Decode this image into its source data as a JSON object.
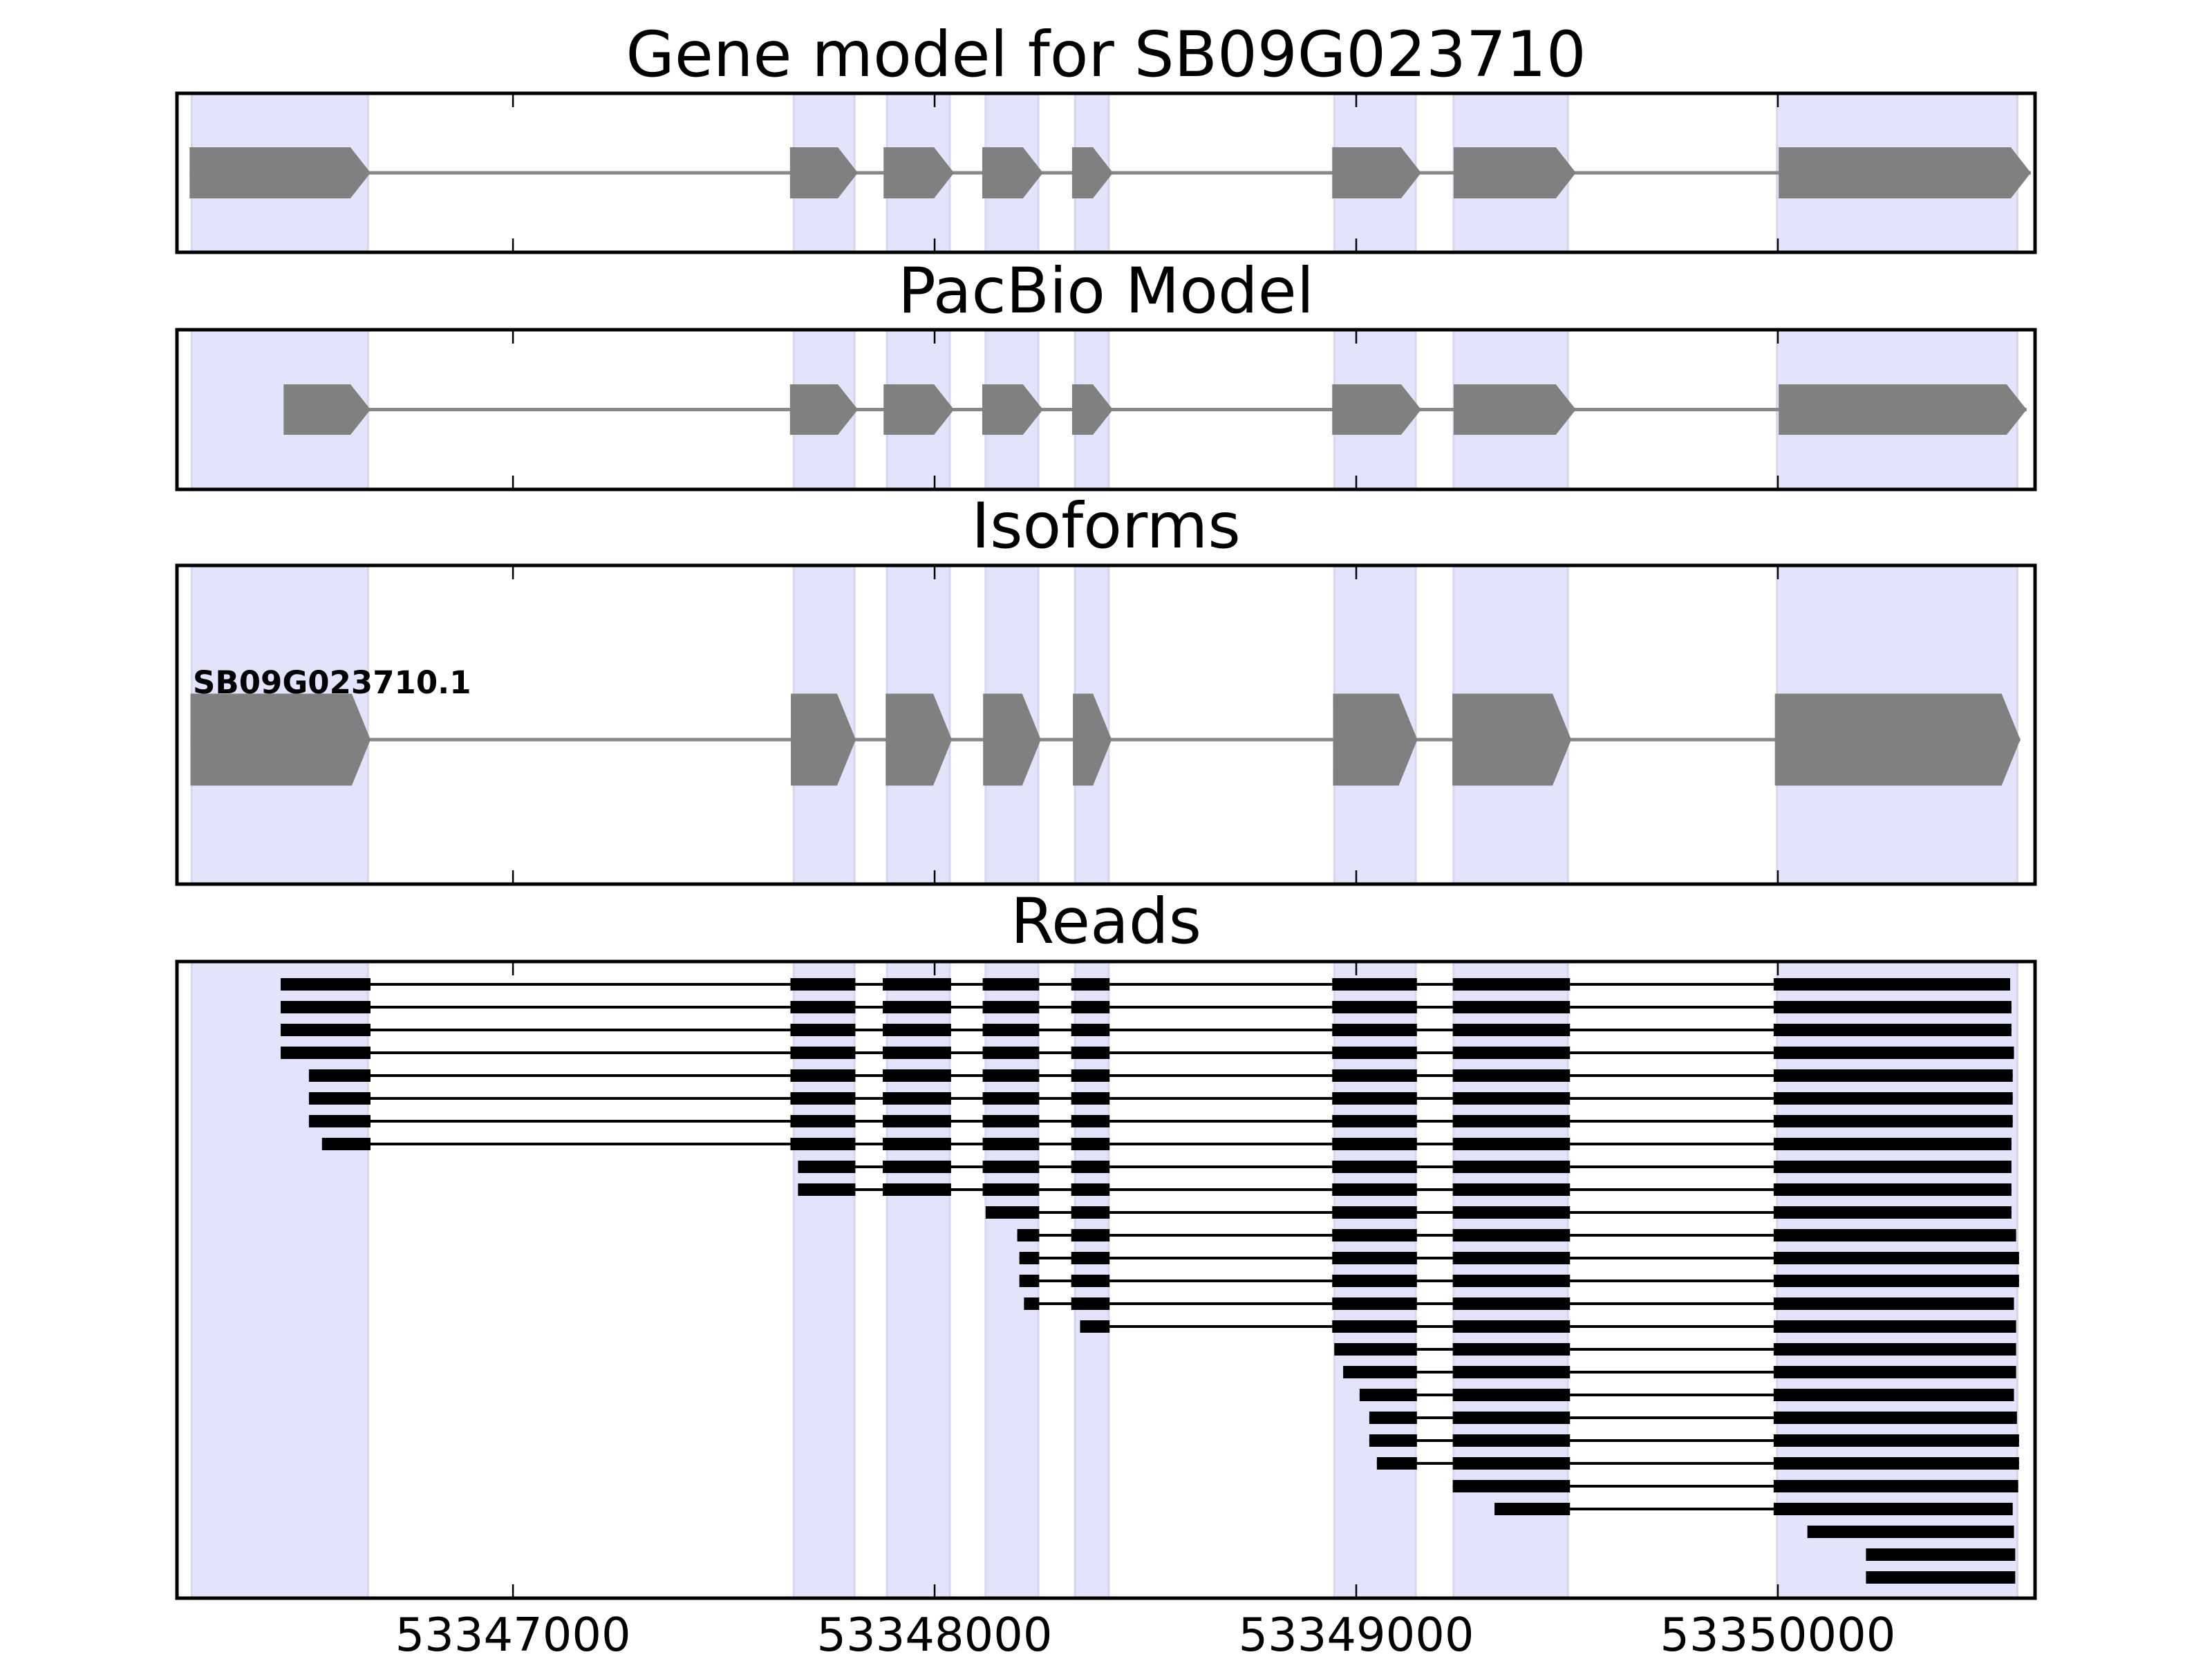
{
  "chart_data": {
    "type": "gene-structure",
    "xlim": [
      53346203,
      53350610
    ],
    "x_ticks": [
      53347000,
      53348000,
      53349000,
      53350000
    ],
    "x_tick_labels": [
      "53347000",
      "53348000",
      "53349000",
      "53350000"
    ],
    "colors": {
      "shade": "#e3e3fc",
      "shade_edge": "#d6d6ee",
      "exon": "#808080",
      "intron": "#888888",
      "read": "#000000",
      "axes": "#000000"
    },
    "shaded_exons": [
      [
        53346238,
        53346656
      ],
      [
        53347666,
        53347810
      ],
      [
        53347887,
        53348036
      ],
      [
        53348121,
        53348246
      ],
      [
        53348333,
        53348413
      ],
      [
        53348948,
        53349141
      ],
      [
        53349231,
        53349502
      ],
      [
        53349998,
        53350568
      ]
    ],
    "panels": [
      {
        "id": "gene-model",
        "title": "Gene model for SB09G023710",
        "strand": "+",
        "exons": [
          [
            53346233,
            53346662
          ],
          [
            53347657,
            53347818
          ],
          [
            53347879,
            53348046
          ],
          [
            53348113,
            53348257
          ],
          [
            53348326,
            53348423
          ],
          [
            53348943,
            53349154
          ],
          [
            53349231,
            53349521
          ],
          [
            53350002,
            53350600
          ]
        ]
      },
      {
        "id": "pacbio-model",
        "title": "PacBio Model",
        "strand": "+",
        "exons": [
          [
            53346456,
            53346662
          ],
          [
            53347657,
            53347818
          ],
          [
            53347879,
            53348046
          ],
          [
            53348113,
            53348257
          ],
          [
            53348326,
            53348423
          ],
          [
            53348943,
            53349154
          ],
          [
            53349231,
            53349521
          ],
          [
            53350002,
            53350590
          ]
        ]
      },
      {
        "id": "isoforms",
        "title": "Isoforms",
        "isoforms": [
          {
            "name": "SB09G023710.1",
            "strand": "+",
            "exons": [
              [
                53346235,
                53346662
              ],
              [
                53347659,
                53347813
              ],
              [
                53347884,
                53348041
              ],
              [
                53348115,
                53348252
              ],
              [
                53348328,
                53348420
              ],
              [
                53348945,
                53349145
              ],
              [
                53349228,
                53349510
              ],
              [
                53349993,
                53350575
              ]
            ]
          }
        ]
      },
      {
        "id": "reads",
        "title": "Reads",
        "reads": [
          [
            [
              53346449,
              53346662
            ],
            [
              53347658,
              53347812
            ],
            [
              53347877,
              53348039
            ],
            [
              53348114,
              53348248
            ],
            [
              53348324,
              53348415
            ],
            [
              53348943,
              53349144
            ],
            [
              53349229,
              53349507
            ],
            [
              53349990,
              53350551
            ]
          ],
          [
            [
              53346449,
              53346662
            ],
            [
              53347658,
              53347812
            ],
            [
              53347877,
              53348039
            ],
            [
              53348114,
              53348248
            ],
            [
              53348324,
              53348415
            ],
            [
              53348943,
              53349144
            ],
            [
              53349229,
              53349507
            ],
            [
              53349990,
              53350554
            ]
          ],
          [
            [
              53346449,
              53346662
            ],
            [
              53347658,
              53347812
            ],
            [
              53347877,
              53348039
            ],
            [
              53348114,
              53348248
            ],
            [
              53348324,
              53348415
            ],
            [
              53348943,
              53349144
            ],
            [
              53349229,
              53349507
            ],
            [
              53349990,
              53350554
            ]
          ],
          [
            [
              53346449,
              53346662
            ],
            [
              53347658,
              53347812
            ],
            [
              53347877,
              53348039
            ],
            [
              53348114,
              53348248
            ],
            [
              53348324,
              53348415
            ],
            [
              53348943,
              53349144
            ],
            [
              53349229,
              53349507
            ],
            [
              53349990,
              53350560
            ]
          ],
          [
            [
              53346516,
              53346662
            ],
            [
              53347658,
              53347812
            ],
            [
              53347877,
              53348039
            ],
            [
              53348114,
              53348248
            ],
            [
              53348324,
              53348415
            ],
            [
              53348943,
              53349144
            ],
            [
              53349229,
              53349507
            ],
            [
              53349990,
              53350557
            ]
          ],
          [
            [
              53346516,
              53346662
            ],
            [
              53347658,
              53347812
            ],
            [
              53347877,
              53348039
            ],
            [
              53348114,
              53348248
            ],
            [
              53348324,
              53348415
            ],
            [
              53348943,
              53349144
            ],
            [
              53349229,
              53349507
            ],
            [
              53349990,
              53350557
            ]
          ],
          [
            [
              53346516,
              53346662
            ],
            [
              53347658,
              53347812
            ],
            [
              53347877,
              53348039
            ],
            [
              53348114,
              53348248
            ],
            [
              53348324,
              53348415
            ],
            [
              53348943,
              53349144
            ],
            [
              53349229,
              53349507
            ],
            [
              53349990,
              53350557
            ]
          ],
          [
            [
              53346547,
              53346662
            ],
            [
              53347658,
              53347812
            ],
            [
              53347877,
              53348039
            ],
            [
              53348114,
              53348248
            ],
            [
              53348324,
              53348415
            ],
            [
              53348943,
              53349144
            ],
            [
              53349229,
              53349507
            ],
            [
              53349990,
              53350554
            ]
          ],
          [
            [
              53347676,
              53347812
            ],
            [
              53347877,
              53348039
            ],
            [
              53348114,
              53348248
            ],
            [
              53348324,
              53348415
            ],
            [
              53348943,
              53349144
            ],
            [
              53349229,
              53349507
            ],
            [
              53349990,
              53350554
            ]
          ],
          [
            [
              53347676,
              53347812
            ],
            [
              53347877,
              53348039
            ],
            [
              53348114,
              53348248
            ],
            [
              53348324,
              53348415
            ],
            [
              53348943,
              53349144
            ],
            [
              53349229,
              53349507
            ],
            [
              53349990,
              53350554
            ]
          ],
          [
            [
              53348121,
              53348248
            ],
            [
              53348324,
              53348415
            ],
            [
              53348943,
              53349144
            ],
            [
              53349229,
              53349507
            ],
            [
              53349990,
              53350554
            ]
          ],
          [
            [
              53348196,
              53348248
            ],
            [
              53348324,
              53348415
            ],
            [
              53348943,
              53349144
            ],
            [
              53349229,
              53349507
            ],
            [
              53349990,
              53350565
            ]
          ],
          [
            [
              53348201,
              53348248
            ],
            [
              53348324,
              53348415
            ],
            [
              53348943,
              53349144
            ],
            [
              53349229,
              53349507
            ],
            [
              53349990,
              53350572
            ]
          ],
          [
            [
              53348201,
              53348248
            ],
            [
              53348324,
              53348415
            ],
            [
              53348943,
              53349144
            ],
            [
              53349229,
              53349507
            ],
            [
              53349990,
              53350572
            ]
          ],
          [
            [
              53348212,
              53348248
            ],
            [
              53348324,
              53348415
            ],
            [
              53348943,
              53349144
            ],
            [
              53349229,
              53349507
            ],
            [
              53349990,
              53350560
            ]
          ],
          [
            [
              53348345,
              53348415
            ],
            [
              53348943,
              53349144
            ],
            [
              53349229,
              53349507
            ],
            [
              53349990,
              53350565
            ]
          ],
          [
            [
              53348948,
              53349144
            ],
            [
              53349229,
              53349507
            ],
            [
              53349990,
              53350565
            ]
          ],
          [
            [
              53348969,
              53349144
            ],
            [
              53349229,
              53349507
            ],
            [
              53349990,
              53350565
            ]
          ],
          [
            [
              53349008,
              53349144
            ],
            [
              53349229,
              53349507
            ],
            [
              53349990,
              53350560
            ]
          ],
          [
            [
              53349031,
              53349144
            ],
            [
              53349229,
              53349507
            ],
            [
              53349990,
              53350567
            ]
          ],
          [
            [
              53349031,
              53349144
            ],
            [
              53349229,
              53349507
            ],
            [
              53349990,
              53350572
            ]
          ],
          [
            [
              53349049,
              53349144
            ],
            [
              53349229,
              53349507
            ],
            [
              53349990,
              53350572
            ]
          ],
          [
            [
              53349229,
              53349507
            ],
            [
              53349990,
              53350570
            ]
          ],
          [
            [
              53349328,
              53349507
            ],
            [
              53349990,
              53350557
            ]
          ],
          [
            [
              53350070,
              53350560
            ]
          ],
          [
            [
              53350209,
              53350563
            ]
          ],
          [
            [
              53350209,
              53350563
            ]
          ]
        ]
      }
    ]
  }
}
